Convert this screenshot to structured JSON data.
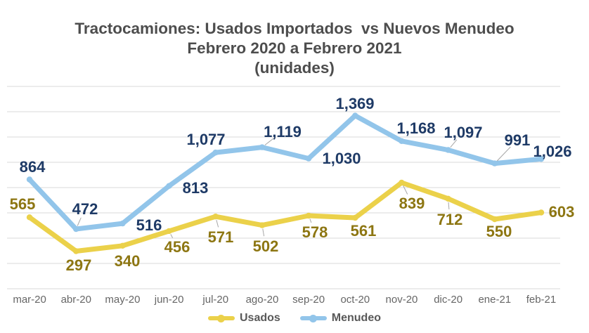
{
  "title": {
    "line1": "Tractocamiones: Usados Importados  vs Nuevos Menudeo",
    "line2": "Febrero 2020 a Febrero 2021",
    "line3": "(unidades)"
  },
  "chart_data": {
    "type": "line",
    "categories": [
      "mar-20",
      "abr-20",
      "may-20",
      "jun-20",
      "jul-20",
      "ago-20",
      "sep-20",
      "oct-20",
      "nov-20",
      "dic-20",
      "ene-21",
      "feb-21"
    ],
    "series": [
      {
        "name": "Usados",
        "color": "#EBD14A",
        "label_color": "#8D7612",
        "values": [
          565,
          297,
          340,
          456,
          571,
          502,
          578,
          561,
          839,
          712,
          550,
          603
        ]
      },
      {
        "name": "Menudeo",
        "color": "#92C5EA",
        "label_color": "#1E3A66",
        "values": [
          864,
          472,
          516,
          813,
          1077,
          1119,
          1030,
          1369,
          1168,
          1097,
          991,
          1026
        ]
      }
    ],
    "title": "Tractocamiones: Usados Importados vs Nuevos Menudeo Febrero 2020 a Febrero 2021 (unidades)",
    "xlabel": "",
    "ylabel": "",
    "ylim": [
      0,
      1600
    ],
    "gridline_step": 200,
    "grid": true,
    "legend_position": "bottom",
    "data_labels": true,
    "value_format": "thousands-comma"
  },
  "colors": {
    "background": "#ffffff",
    "title_text": "#4d4d4d",
    "axis_label": "#666666",
    "legend_text": "#595959",
    "gridline": "#D9D9D9",
    "leader_line": "#A6A6A6"
  }
}
